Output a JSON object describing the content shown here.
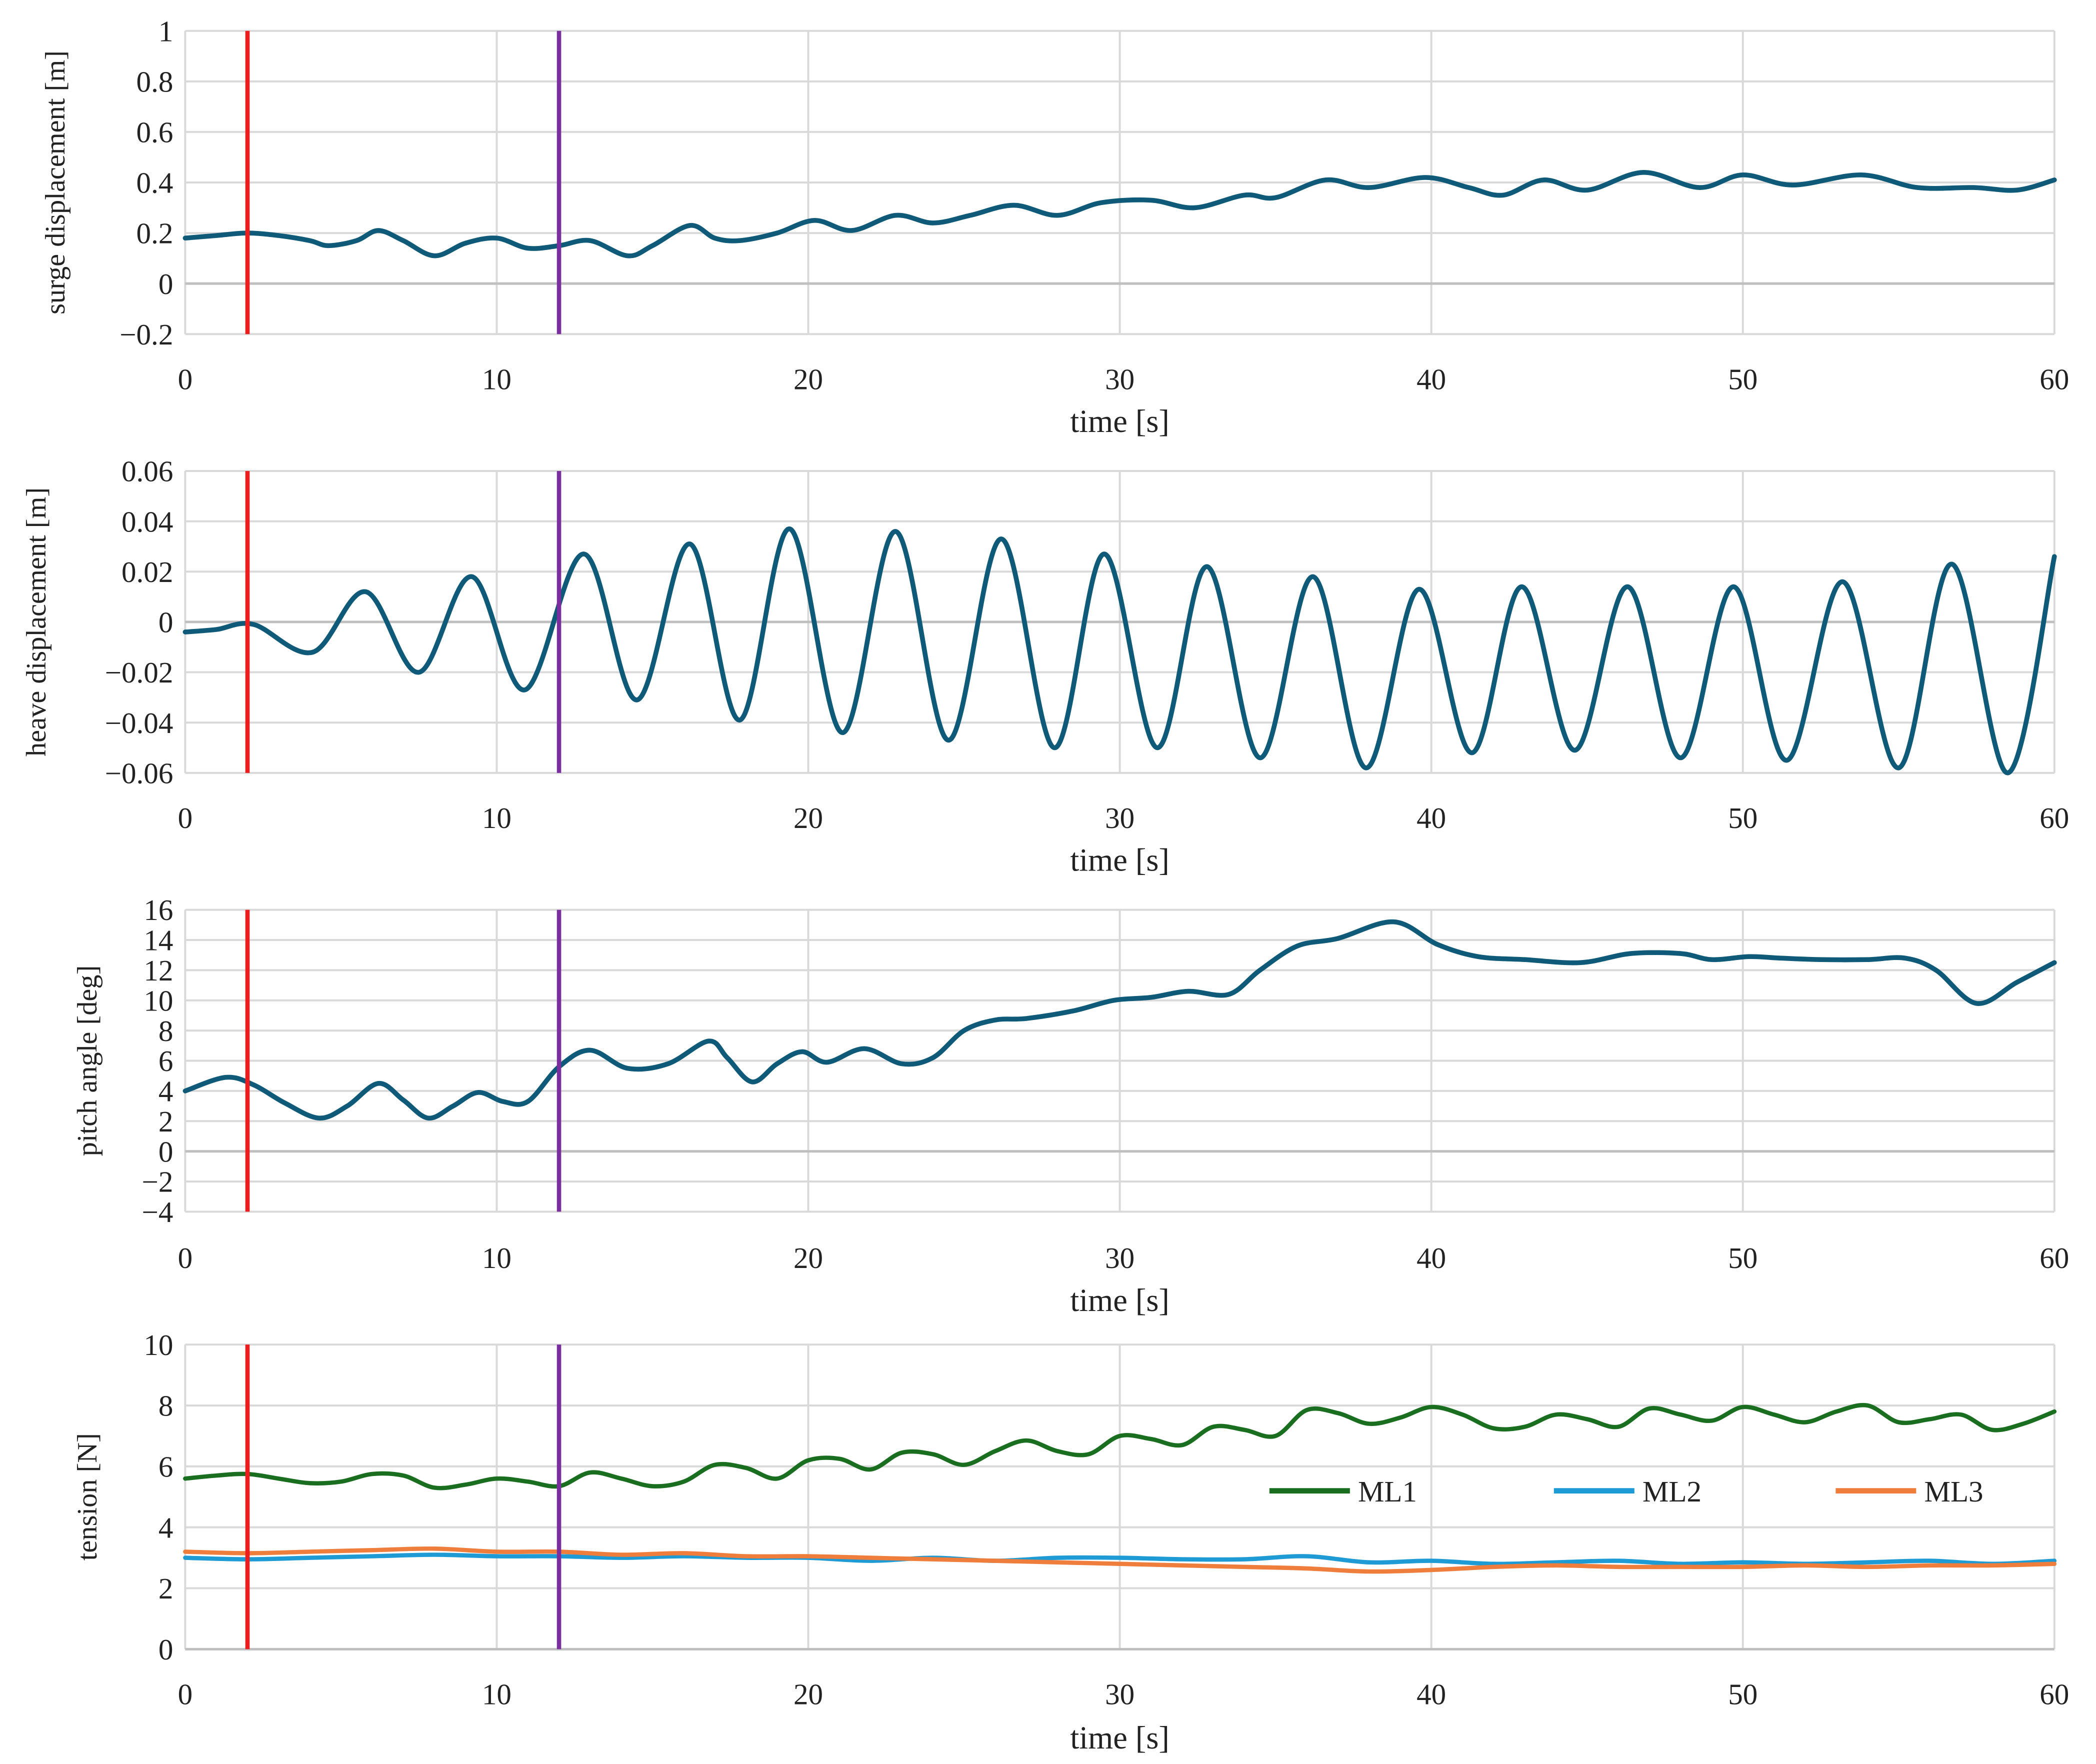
{
  "chart_data": [
    {
      "type": "line",
      "xlabel": "time [s]",
      "ylabel": "surge displacement [m]",
      "xlim": [
        0,
        60
      ],
      "ylim": [
        -0.2,
        1
      ],
      "xticks": [
        0,
        10,
        20,
        30,
        40,
        50,
        60
      ],
      "yticks": [
        -0.2,
        0,
        0.2,
        0.4,
        0.6,
        0.8,
        1
      ],
      "ytick_labels": [
        "−0.2",
        "0",
        "0.2",
        "0.4",
        "0.6",
        "0.8",
        "1"
      ],
      "grid": true,
      "vlines": [
        {
          "x": 2,
          "color": "#ee1c1c"
        },
        {
          "x": 12,
          "color": "#7b2f9e"
        }
      ],
      "series": [
        {
          "name": "surge",
          "color": "#0e5a78",
          "x": [
            0,
            1,
            2,
            3,
            4,
            4.6,
            5.5,
            6.2,
            7,
            8,
            9,
            10,
            11,
            12,
            13,
            14.2,
            15,
            16.2,
            17,
            17.8,
            19,
            20.2,
            21.4,
            22.8,
            24,
            25.2,
            26.6,
            28,
            29.4,
            31,
            32.4,
            34,
            35,
            36.6,
            38,
            39.8,
            41.2,
            42.3,
            43.6,
            45,
            46.8,
            48.6,
            50,
            51.6,
            53.8,
            55.6,
            57.4,
            58.8,
            60
          ],
          "y": [
            0.18,
            0.19,
            0.2,
            0.19,
            0.17,
            0.15,
            0.17,
            0.21,
            0.17,
            0.11,
            0.16,
            0.18,
            0.14,
            0.15,
            0.17,
            0.11,
            0.15,
            0.23,
            0.18,
            0.17,
            0.2,
            0.25,
            0.21,
            0.27,
            0.24,
            0.27,
            0.31,
            0.27,
            0.32,
            0.33,
            0.3,
            0.35,
            0.34,
            0.41,
            0.38,
            0.42,
            0.38,
            0.35,
            0.41,
            0.37,
            0.44,
            0.38,
            0.43,
            0.39,
            0.43,
            0.38,
            0.38,
            0.37,
            0.41
          ]
        }
      ]
    },
    {
      "type": "line",
      "xlabel": "time [s]",
      "ylabel": "heave displacement [m]",
      "xlim": [
        0,
        60
      ],
      "ylim": [
        -0.06,
        0.06
      ],
      "xticks": [
        0,
        10,
        20,
        30,
        40,
        50,
        60
      ],
      "yticks": [
        -0.06,
        -0.04,
        -0.02,
        0,
        0.02,
        0.04,
        0.06
      ],
      "ytick_labels": [
        "−0.06",
        "−0.04",
        "−0.02",
        "0",
        "0.02",
        "0.04",
        "0.06"
      ],
      "grid": true,
      "vlines": [
        {
          "x": 2,
          "color": "#ee1c1c"
        },
        {
          "x": 12,
          "color": "#7b2f9e"
        }
      ],
      "series": [
        {
          "name": "heave",
          "color": "#0e5a78",
          "x": [
            0,
            1,
            2.2,
            4.1,
            5.8,
            7.5,
            9.2,
            10.9,
            12.8,
            14.5,
            16.2,
            17.8,
            19.4,
            21.1,
            22.8,
            24.5,
            26.2,
            27.9,
            29.5,
            31.2,
            32.8,
            34.5,
            36.2,
            37.9,
            39.6,
            41.3,
            42.9,
            44.6,
            46.3,
            48,
            49.7,
            51.4,
            53.2,
            55,
            56.7,
            58.5,
            60
          ],
          "y": [
            -0.004,
            -0.003,
            -0.001,
            -0.012,
            0.012,
            -0.02,
            0.018,
            -0.027,
            0.027,
            -0.031,
            0.031,
            -0.039,
            0.037,
            -0.044,
            0.036,
            -0.047,
            0.033,
            -0.05,
            0.027,
            -0.05,
            0.022,
            -0.054,
            0.018,
            -0.058,
            0.013,
            -0.052,
            0.014,
            -0.051,
            0.014,
            -0.054,
            0.014,
            -0.055,
            0.016,
            -0.058,
            0.023,
            -0.06,
            0.026
          ]
        }
      ]
    },
    {
      "type": "line",
      "xlabel": "time [s]",
      "ylabel": "pitch angle [deg]",
      "xlim": [
        0,
        60
      ],
      "ylim": [
        -4,
        16
      ],
      "xticks": [
        0,
        10,
        20,
        30,
        40,
        50,
        60
      ],
      "yticks": [
        -4,
        -2,
        0,
        2,
        4,
        6,
        8,
        10,
        12,
        14,
        16
      ],
      "ytick_labels": [
        "−4",
        "−2",
        "0",
        "2",
        "4",
        "6",
        "8",
        "10",
        "12",
        "14",
        "16"
      ],
      "grid": true,
      "vlines": [
        {
          "x": 2,
          "color": "#ee1c1c"
        },
        {
          "x": 12,
          "color": "#7b2f9e"
        }
      ],
      "series": [
        {
          "name": "pitch",
          "color": "#0e5a78",
          "x": [
            0,
            1.3,
            2.2,
            3.2,
            4.3,
            5.2,
            6.2,
            7,
            7.8,
            8.6,
            9.4,
            10.2,
            11,
            12,
            13,
            14.2,
            15.5,
            16.8,
            17.4,
            18.2,
            19,
            19.8,
            20.6,
            21.8,
            23,
            24,
            25,
            26,
            27,
            28.5,
            29.8,
            31,
            32.2,
            33.5,
            34.5,
            35.7,
            37,
            38.8,
            40.2,
            41.5,
            43,
            44.8,
            46.4,
            48,
            49,
            50.2,
            51.2,
            52.5,
            54,
            55.2,
            56.2,
            57.5,
            58.8,
            60
          ],
          "y": [
            4,
            4.9,
            4.4,
            3.2,
            2.2,
            3,
            4.5,
            3.4,
            2.2,
            3,
            3.9,
            3.3,
            3.3,
            5.6,
            6.7,
            5.5,
            5.8,
            7.3,
            6.2,
            4.6,
            5.8,
            6.6,
            5.9,
            6.8,
            5.8,
            6.2,
            8,
            8.7,
            8.8,
            9.3,
            10,
            10.2,
            10.6,
            10.4,
            12,
            13.6,
            14.1,
            15.2,
            13.7,
            12.9,
            12.7,
            12.5,
            13.1,
            13.1,
            12.7,
            12.9,
            12.8,
            12.7,
            12.7,
            12.8,
            12,
            9.8,
            11.2,
            12.5
          ]
        }
      ]
    },
    {
      "type": "line",
      "xlabel": "time [s]",
      "ylabel": "tension [N]",
      "xlim": [
        0,
        60
      ],
      "ylim": [
        0,
        10
      ],
      "xticks": [
        0,
        10,
        20,
        30,
        40,
        50,
        60
      ],
      "yticks": [
        0,
        2,
        4,
        6,
        8,
        10
      ],
      "ytick_labels": [
        "0",
        "2",
        "4",
        "6",
        "8",
        "10"
      ],
      "grid": true,
      "legend": "right",
      "vlines": [
        {
          "x": 2,
          "color": "#ee1c1c"
        },
        {
          "x": 12,
          "color": "#7b2f9e"
        }
      ],
      "series": [
        {
          "name": "ML1",
          "color": "#1a6e1f",
          "x": [
            0,
            1,
            2,
            3,
            4,
            5,
            6,
            7,
            8,
            9,
            10,
            11,
            12,
            13,
            14,
            15,
            16,
            17,
            18,
            19,
            20,
            21,
            22,
            23,
            24,
            25,
            26,
            27,
            28,
            29,
            30,
            31,
            32,
            33,
            34,
            35,
            36,
            37,
            38,
            39,
            40,
            41,
            42,
            43,
            44,
            45,
            46,
            47,
            48,
            49,
            50,
            51,
            52,
            53,
            54,
            55,
            56,
            57,
            58,
            59,
            60
          ],
          "y": [
            5.6,
            5.7,
            5.75,
            5.6,
            5.45,
            5.5,
            5.75,
            5.7,
            5.3,
            5.4,
            5.6,
            5.5,
            5.35,
            5.8,
            5.6,
            5.35,
            5.5,
            6.05,
            5.95,
            5.6,
            6.2,
            6.25,
            5.9,
            6.45,
            6.4,
            6.05,
            6.5,
            6.85,
            6.5,
            6.4,
            7,
            6.9,
            6.7,
            7.3,
            7.2,
            7,
            7.85,
            7.75,
            7.4,
            7.6,
            7.95,
            7.7,
            7.25,
            7.3,
            7.7,
            7.55,
            7.3,
            7.9,
            7.7,
            7.5,
            7.95,
            7.7,
            7.45,
            7.8,
            8,
            7.45,
            7.55,
            7.7,
            7.2,
            7.4,
            7.8
          ]
        },
        {
          "name": "ML2",
          "color": "#1e9bd5",
          "x": [
            0,
            2,
            4,
            6,
            8,
            10,
            12,
            14,
            16,
            18,
            20,
            22,
            24,
            26,
            28,
            30,
            32,
            34,
            36,
            38,
            40,
            42,
            44,
            46,
            48,
            50,
            52,
            54,
            56,
            58,
            60
          ],
          "y": [
            3,
            2.95,
            3,
            3.05,
            3.1,
            3.05,
            3.05,
            3,
            3.05,
            3,
            3,
            2.9,
            3,
            2.9,
            3,
            3,
            2.95,
            2.95,
            3.05,
            2.85,
            2.9,
            2.8,
            2.85,
            2.9,
            2.8,
            2.85,
            2.8,
            2.85,
            2.9,
            2.8,
            2.9
          ]
        },
        {
          "name": "ML3",
          "color": "#ef7d3c",
          "x": [
            0,
            2,
            4,
            6,
            8,
            10,
            12,
            14,
            16,
            18,
            20,
            22,
            24,
            26,
            28,
            30,
            32,
            34,
            36,
            38,
            40,
            42,
            44,
            46,
            48,
            50,
            52,
            54,
            56,
            58,
            60
          ],
          "y": [
            3.2,
            3.15,
            3.2,
            3.25,
            3.3,
            3.2,
            3.2,
            3.1,
            3.15,
            3.05,
            3.05,
            3,
            2.95,
            2.9,
            2.85,
            2.8,
            2.75,
            2.7,
            2.65,
            2.55,
            2.6,
            2.7,
            2.75,
            2.7,
            2.7,
            2.7,
            2.75,
            2.7,
            2.75,
            2.75,
            2.8
          ]
        }
      ]
    }
  ]
}
